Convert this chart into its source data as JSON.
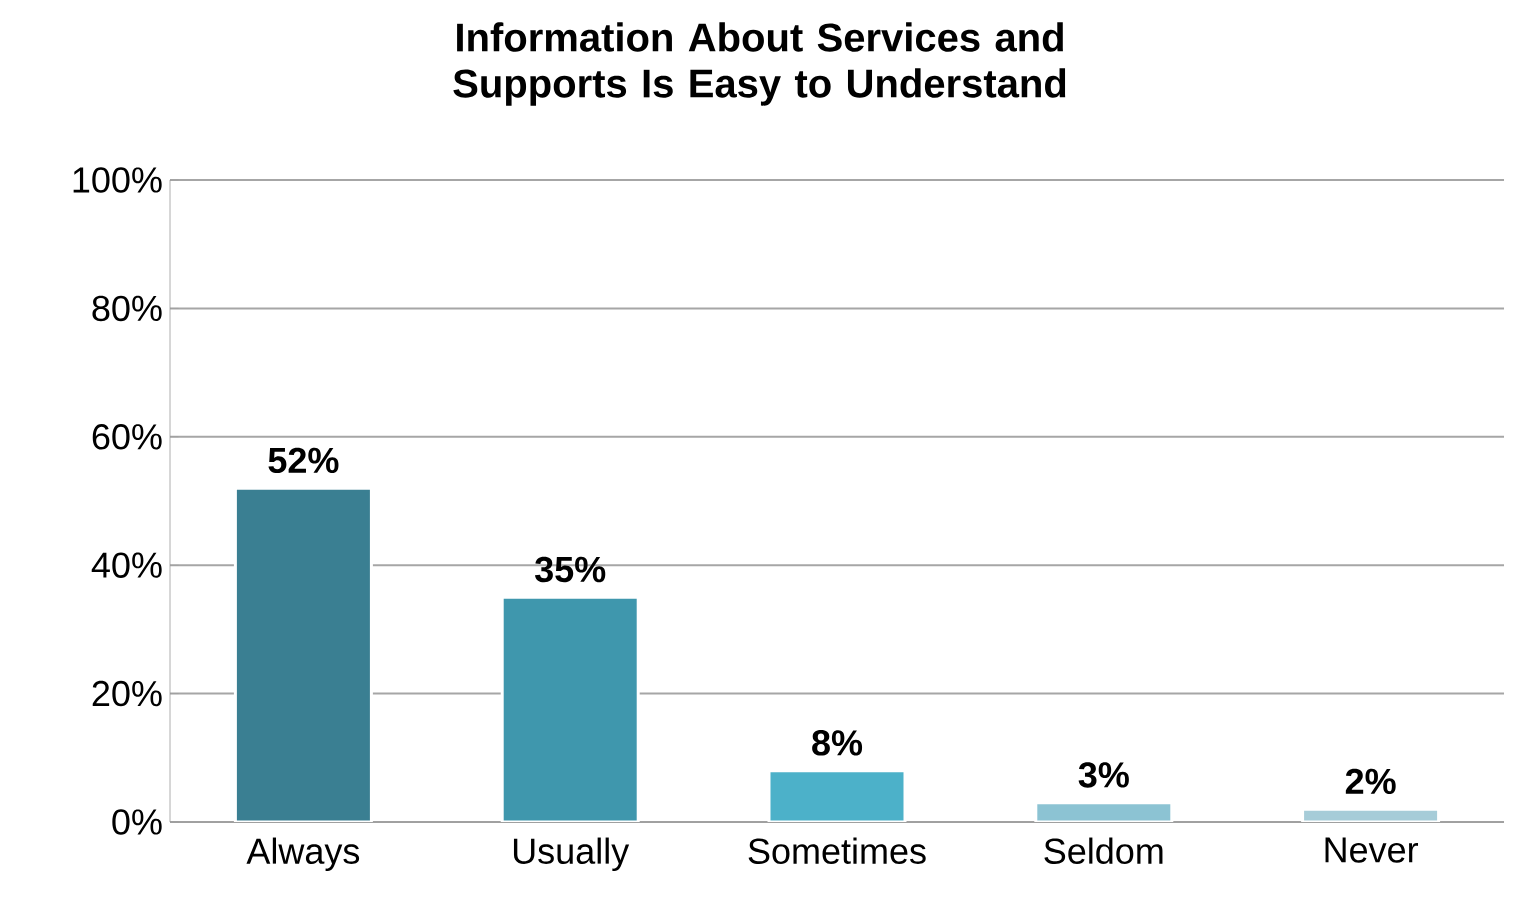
{
  "chart_data": {
    "type": "bar",
    "title": "Information About Services and Supports Is Easy to Understand",
    "categories": [
      "Always",
      "Usually",
      "Sometimes",
      "Seldom",
      "Never"
    ],
    "values": [
      52,
      35,
      8,
      3,
      2
    ],
    "colors": [
      "#3a7f92",
      "#3f97ad",
      "#4cb1c9",
      "#8cc3d3",
      "#a6ccd8"
    ],
    "value_labels": [
      "52%",
      "35%",
      "8%",
      "3%",
      "2%"
    ],
    "ylim": [
      0,
      100
    ],
    "yticks": [
      {
        "value": 0,
        "label": "0%"
      },
      {
        "value": 20,
        "label": "20%"
      },
      {
        "value": 40,
        "label": "40%"
      },
      {
        "value": 60,
        "label": "60%"
      },
      {
        "value": 80,
        "label": "80%"
      },
      {
        "value": 100,
        "label": "100%"
      }
    ],
    "grid": "y"
  }
}
